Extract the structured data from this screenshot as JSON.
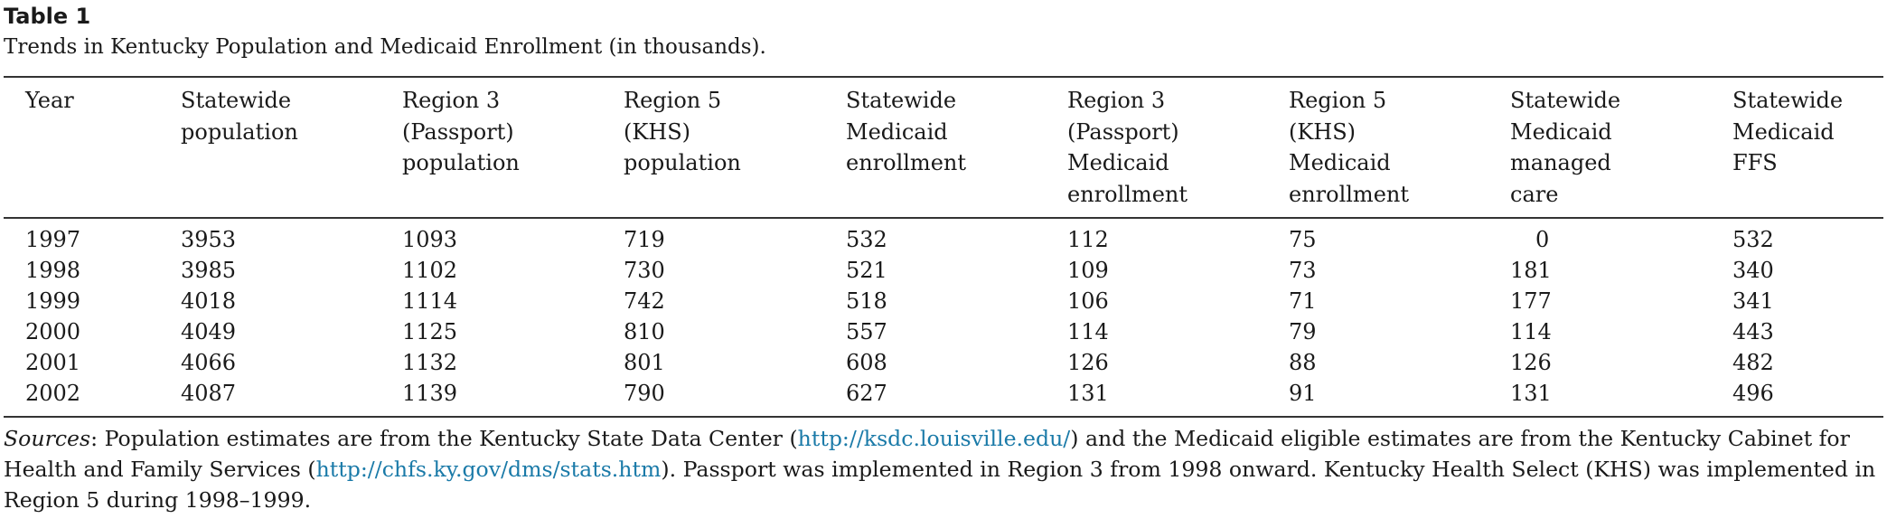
{
  "table_label": "Table 1",
  "table_title": "Trends in Kentucky Population and Medicaid Enrollment (in thousands).",
  "columns": [
    [
      "Year"
    ],
    [
      "Statewide",
      "population"
    ],
    [
      "Region 3",
      "(Passport)",
      "population"
    ],
    [
      "Region 5",
      "(KHS)",
      "population"
    ],
    [
      "Statewide",
      "Medicaid",
      "enrollment"
    ],
    [
      "Region 3",
      "(Passport)",
      "Medicaid",
      "enrollment"
    ],
    [
      "Region 5",
      "(KHS)",
      "Medicaid",
      "enrollment"
    ],
    [
      "Statewide",
      "Medicaid",
      "managed",
      "care"
    ],
    [
      "Statewide",
      "Medicaid",
      "FFS"
    ]
  ],
  "rows": [
    [
      "1997",
      "3953",
      "1093",
      "719",
      "532",
      "112",
      "75",
      "0",
      "532"
    ],
    [
      "1998",
      "3985",
      "1102",
      "730",
      "521",
      "109",
      "73",
      "181",
      "340"
    ],
    [
      "1999",
      "4018",
      "1114",
      "742",
      "518",
      "106",
      "71",
      "177",
      "341"
    ],
    [
      "2000",
      "4049",
      "1125",
      "810",
      "557",
      "114",
      "79",
      "114",
      "443"
    ],
    [
      "2001",
      "4066",
      "1132",
      "801",
      "608",
      "126",
      "88",
      "126",
      "482"
    ],
    [
      "2002",
      "4087",
      "1139",
      "790",
      "627",
      "131",
      "91",
      "131",
      "496"
    ]
  ],
  "footnote": {
    "label": "Sources",
    "text1": ": Population estimates are from the Kentucky State Data Center (",
    "link1": "http://ksdc.louisville.edu/",
    "text2": ") and the Medicaid eligible estimates are from the Kentucky Cabinet for Health and Family Services (",
    "link2": "http://chfs.ky.gov/dms/stats.htm",
    "text3": "). Passport was implemented in Region 3 from 1998 onward. Kentucky Health Select (KHS) was implemented in Region 5 during 1998–1999."
  },
  "colors": {
    "link": "#1a7aa8",
    "rule": "#333333",
    "text": "#1a1a1a"
  }
}
